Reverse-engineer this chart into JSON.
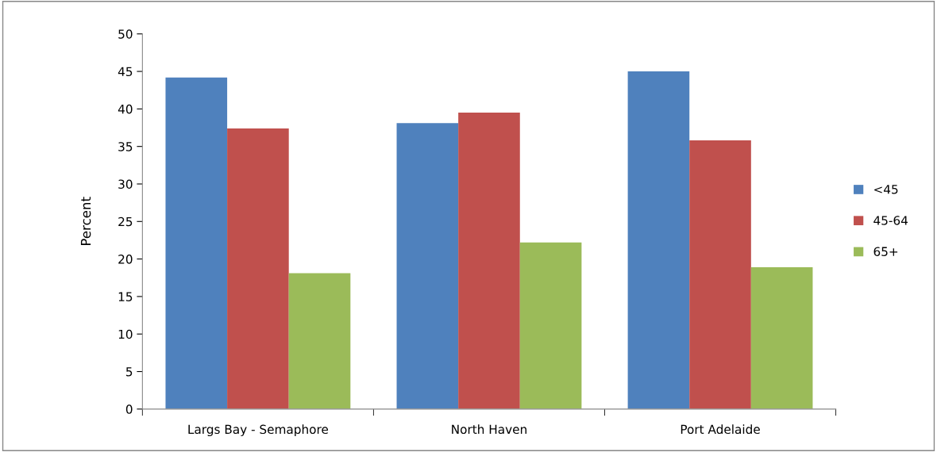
{
  "chart_data": {
    "type": "bar",
    "ylabel": "Percent",
    "categories": [
      "Largs Bay - Semaphore",
      "North Haven",
      "Port Adelaide"
    ],
    "series": [
      {
        "name": "<45",
        "color": "#4f81bd",
        "values": [
          44.2,
          38.1,
          45.0
        ]
      },
      {
        "name": "45-64",
        "color": "#c0504d",
        "values": [
          37.4,
          39.5,
          35.8
        ]
      },
      {
        "name": "65+",
        "color": "#9bbb59",
        "values": [
          18.1,
          22.2,
          18.9
        ]
      }
    ],
    "ylim": [
      0,
      50
    ],
    "yticks": [
      0,
      5,
      10,
      15,
      20,
      25,
      30,
      35,
      40,
      45,
      50
    ],
    "grid": false,
    "legend": "right"
  }
}
